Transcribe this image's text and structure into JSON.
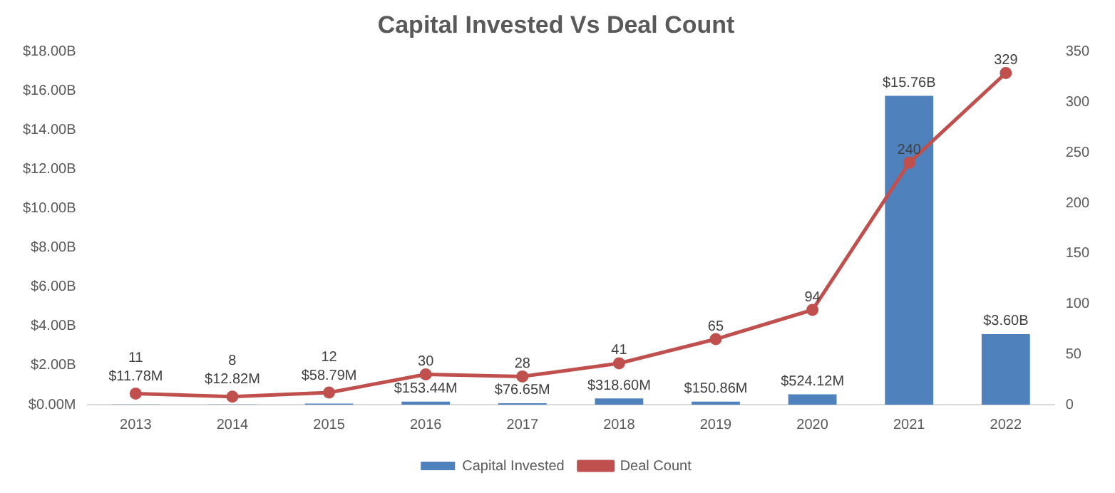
{
  "chart_data": {
    "type": "bar",
    "title": "Capital Invested Vs Deal Count",
    "categories": [
      "2013",
      "2014",
      "2015",
      "2016",
      "2017",
      "2018",
      "2019",
      "2020",
      "2021",
      "2022"
    ],
    "series": [
      {
        "name": "Capital Invested",
        "type": "bar",
        "color": "#4f81bd",
        "values": [
          11780000,
          12820000,
          58790000,
          153440000,
          76650000,
          318600000,
          150860000,
          524120000,
          15760000000,
          3600000000
        ],
        "value_labels": [
          "$11.78M",
          "$12.82M",
          "$58.79M",
          "$153.44M",
          "$76.65M",
          "$318.60M",
          "$150.86M",
          "$524.12M",
          "$15.76B",
          "$3.60B"
        ]
      },
      {
        "name": "Deal Count",
        "type": "line",
        "axis": "y2",
        "color": "#c0504d",
        "values": [
          11,
          8,
          12,
          30,
          28,
          41,
          65,
          94,
          240,
          329
        ],
        "value_labels": [
          "11",
          "8",
          "12",
          "30",
          "28",
          "41",
          "65",
          "94",
          "240",
          "329"
        ]
      }
    ],
    "ylim": [
      0,
      18000000000
    ],
    "yticks": [
      {
        "value": 0,
        "label": "$0.00M"
      },
      {
        "value": 2000000000,
        "label": "$2.00B"
      },
      {
        "value": 4000000000,
        "label": "$4.00B"
      },
      {
        "value": 6000000000,
        "label": "$6.00B"
      },
      {
        "value": 8000000000,
        "label": "$8.00B"
      },
      {
        "value": 10000000000,
        "label": "$10.00B"
      },
      {
        "value": 12000000000,
        "label": "$12.00B"
      },
      {
        "value": 14000000000,
        "label": "$14.00B"
      },
      {
        "value": 16000000000,
        "label": "$16.00B"
      },
      {
        "value": 18000000000,
        "label": "$18.00B"
      }
    ],
    "y2lim": [
      0,
      350
    ],
    "y2ticks": [
      0,
      50,
      100,
      150,
      200,
      250,
      300,
      350
    ],
    "legend": "bottom",
    "marker": "circle",
    "line_style": "solid",
    "grid": false
  }
}
